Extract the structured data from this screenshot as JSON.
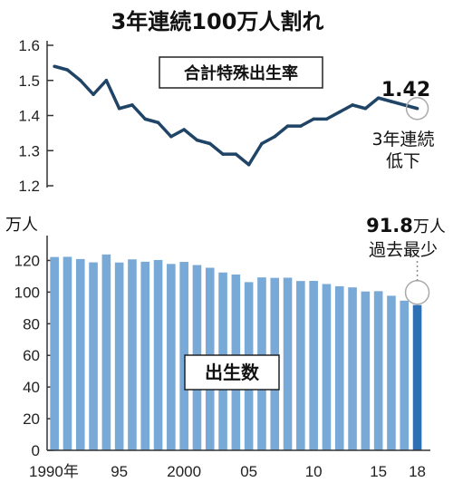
{
  "headline": "3年連続100万人割れ",
  "colors": {
    "line": "#1f4466",
    "bar": "#79a9d6",
    "bar_highlight": "#2f6fb4",
    "axis": "#333333"
  },
  "chart_data": [
    {
      "type": "line",
      "title": "合計特殊出生率",
      "x": [
        1990,
        1991,
        1992,
        1993,
        1994,
        1995,
        1996,
        1997,
        1998,
        1999,
        2000,
        2001,
        2002,
        2003,
        2004,
        2005,
        2006,
        2007,
        2008,
        2009,
        2010,
        2011,
        2012,
        2013,
        2014,
        2015,
        2016,
        2017,
        2018
      ],
      "values": [
        1.54,
        1.53,
        1.5,
        1.46,
        1.5,
        1.42,
        1.43,
        1.39,
        1.38,
        1.34,
        1.36,
        1.33,
        1.32,
        1.29,
        1.29,
        1.26,
        1.32,
        1.34,
        1.37,
        1.37,
        1.39,
        1.39,
        1.41,
        1.43,
        1.42,
        1.45,
        1.44,
        1.43,
        1.42
      ],
      "ylim": [
        1.2,
        1.6
      ],
      "yticks": [
        "1.6",
        "1.5",
        "1.4",
        "1.3",
        "1.2"
      ],
      "last_value_label": "1.42",
      "annotation": [
        "3年連続",
        "低下"
      ]
    },
    {
      "type": "bar",
      "title": "出生数",
      "ylabel": "万人",
      "x": [
        1990,
        1991,
        1992,
        1993,
        1994,
        1995,
        1996,
        1997,
        1998,
        1999,
        2000,
        2001,
        2002,
        2003,
        2004,
        2005,
        2006,
        2007,
        2008,
        2009,
        2010,
        2011,
        2012,
        2013,
        2014,
        2015,
        2016,
        2017,
        2018
      ],
      "values": [
        122.2,
        122.3,
        120.9,
        118.8,
        123.8,
        118.7,
        120.7,
        119.2,
        120.3,
        117.8,
        119.1,
        117.1,
        115.4,
        112.4,
        111.1,
        106.3,
        109.3,
        109.0,
        109.1,
        107.0,
        107.1,
        105.1,
        103.7,
        103.0,
        100.4,
        100.6,
        97.7,
        94.6,
        91.8
      ],
      "ylim": [
        0,
        130
      ],
      "yticks": [
        "120",
        "100",
        "80",
        "60",
        "40",
        "20",
        "0"
      ],
      "xticks": [
        "1990年",
        "95",
        "2000",
        "05",
        "10",
        "15",
        "18"
      ],
      "last_value_label": "91.8",
      "last_value_unit": "万人",
      "annotation": "過去最少"
    }
  ]
}
